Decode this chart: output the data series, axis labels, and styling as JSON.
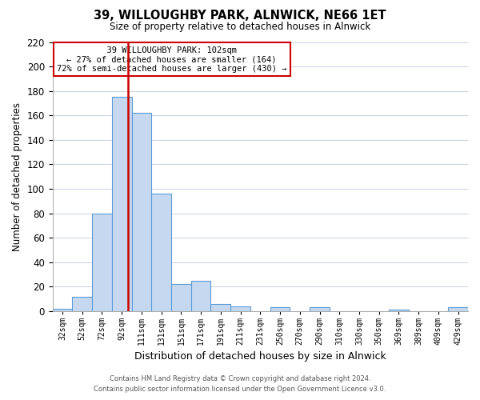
{
  "title": "39, WILLOUGHBY PARK, ALNWICK, NE66 1ET",
  "subtitle": "Size of property relative to detached houses in Alnwick",
  "xlabel": "Distribution of detached houses by size in Alnwick",
  "ylabel": "Number of detached properties",
  "bar_labels": [
    "32sqm",
    "52sqm",
    "72sqm",
    "92sqm",
    "111sqm",
    "131sqm",
    "151sqm",
    "171sqm",
    "191sqm",
    "211sqm",
    "231sqm",
    "250sqm",
    "270sqm",
    "290sqm",
    "310sqm",
    "330sqm",
    "350sqm",
    "369sqm",
    "389sqm",
    "409sqm",
    "429sqm"
  ],
  "bar_values": [
    2,
    12,
    80,
    175,
    162,
    96,
    22,
    25,
    6,
    4,
    0,
    3,
    0,
    3,
    0,
    0,
    0,
    1,
    0,
    0,
    3
  ],
  "bar_color": "#c5d8f0",
  "bar_edge_color": "#5b9bd5",
  "vline_color": "#cc0000",
  "ylim": [
    0,
    220
  ],
  "yticks": [
    0,
    20,
    40,
    60,
    80,
    100,
    120,
    140,
    160,
    180,
    200,
    220
  ],
  "annotation_title": "39 WILLOUGHBY PARK: 102sqm",
  "annotation_line1": "← 27% of detached houses are smaller (164)",
  "annotation_line2": "72% of semi-detached houses are larger (430) →",
  "annotation_box_color": "#ffffff",
  "annotation_box_edge": "#cc0000",
  "footer_line1": "Contains HM Land Registry data © Crown copyright and database right 2024.",
  "footer_line2": "Contains public sector information licensed under the Open Government Licence v3.0.",
  "background_color": "#ffffff",
  "grid_color": "#c8d0dc"
}
